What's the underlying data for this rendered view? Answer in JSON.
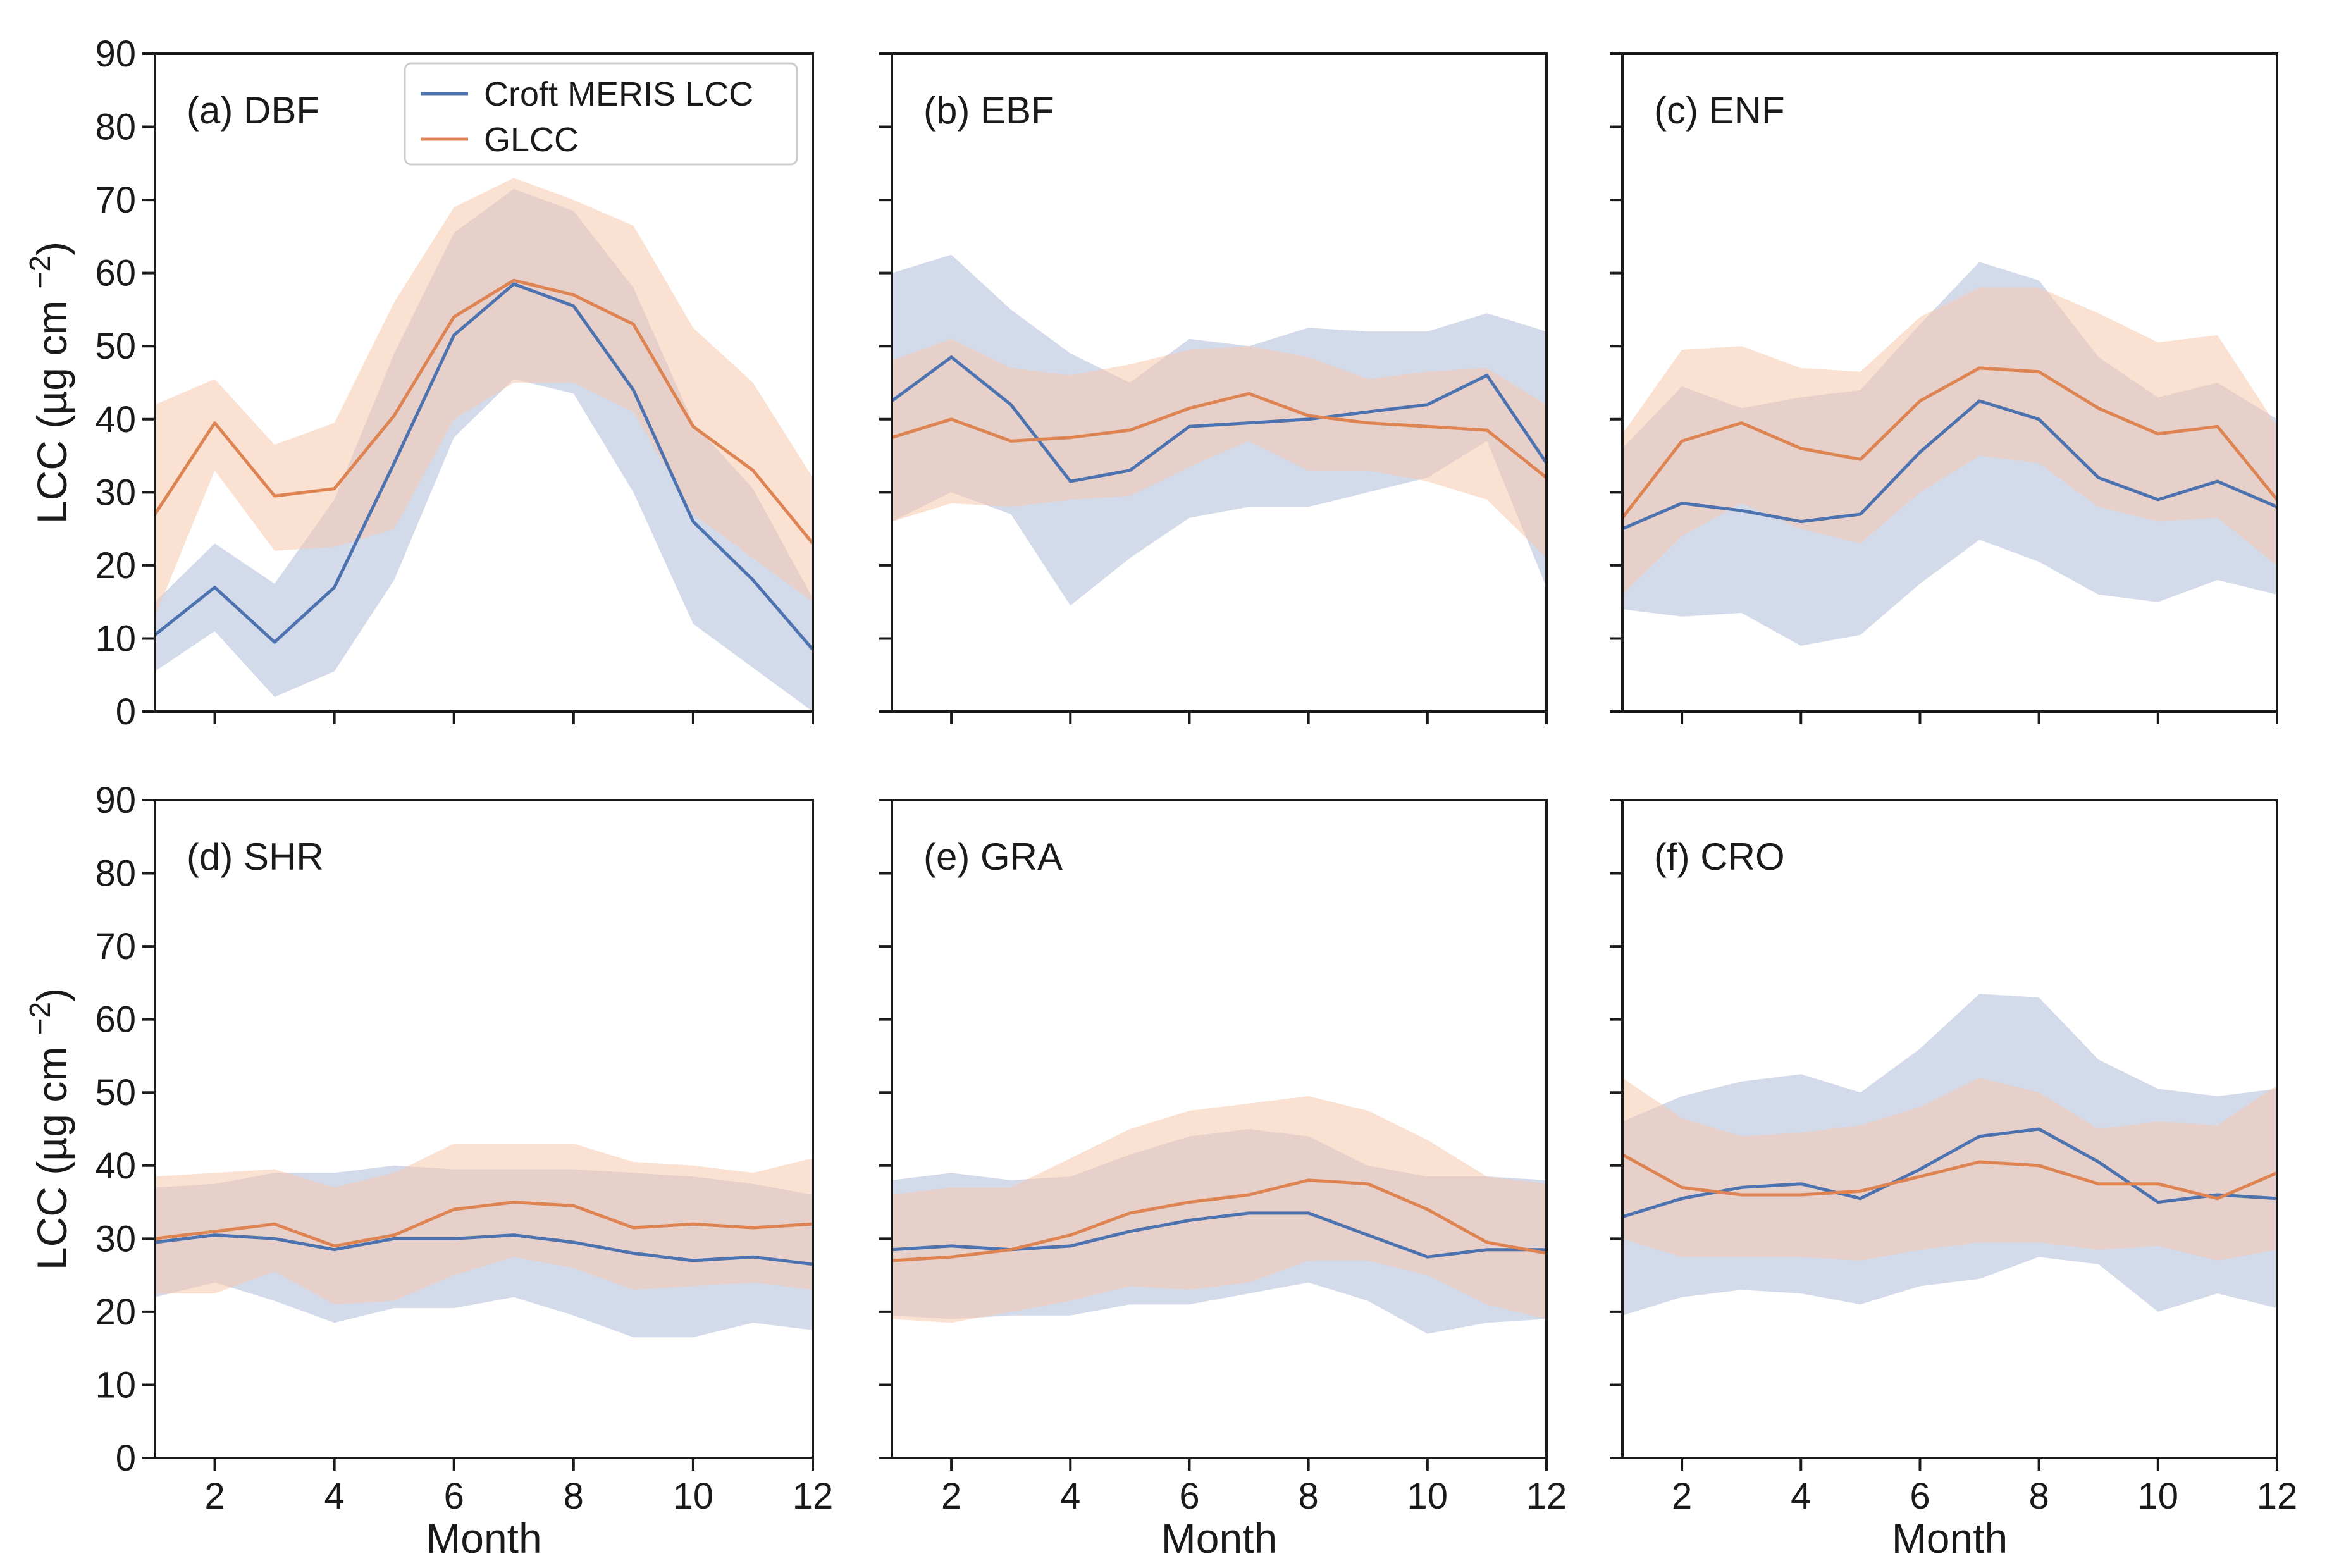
{
  "figure": {
    "series_names": [
      "Croft MERIS LCC",
      "GLCC"
    ],
    "colors": {
      "croft_line": "#4c72b0",
      "croft_band": "#aebbd8",
      "glcc_line": "#dd8452",
      "glcc_band": "#f5c9ad",
      "frame": "#1a1a1a"
    },
    "xlabel": "Month",
    "ylabel": "LCC (µg cm",
    "ylabel_exp": "−2",
    "ylabel_close": ")"
  },
  "chart_data": [
    {
      "type": "line",
      "title": "(a) DBF",
      "x": [
        1,
        2,
        3,
        4,
        5,
        6,
        7,
        8,
        9,
        10,
        11,
        12
      ],
      "xlim": [
        1,
        12
      ],
      "ylim": [
        0,
        90
      ],
      "xticks": [
        2,
        4,
        6,
        8,
        10,
        12
      ],
      "yticks": [
        0,
        10,
        20,
        30,
        40,
        50,
        60,
        70,
        80,
        90
      ],
      "show_legend": true,
      "legend_position": "top-right",
      "series": [
        {
          "name": "Croft MERIS LCC",
          "values": [
            10.5,
            17,
            9.5,
            17,
            34,
            51.5,
            58.5,
            55.5,
            44,
            26,
            18,
            8.5
          ],
          "lower": [
            5.5,
            11,
            2,
            5.5,
            18,
            37.5,
            45.5,
            43.5,
            30,
            12,
            6,
            0
          ],
          "upper": [
            15,
            23,
            17.5,
            29,
            49,
            65.5,
            71.5,
            68.5,
            58,
            39.5,
            30.5,
            15.5
          ]
        },
        {
          "name": "GLCC",
          "values": [
            27,
            39.5,
            29.5,
            30.5,
            40.5,
            54,
            59,
            57,
            53,
            39,
            33,
            23
          ],
          "lower": [
            13,
            33,
            22,
            22.5,
            25,
            40,
            45,
            45,
            41,
            27,
            21,
            15
          ],
          "upper": [
            42,
            45.5,
            36.5,
            39.5,
            56,
            69,
            73,
            70,
            66.5,
            52.5,
            45,
            32
          ]
        }
      ]
    },
    {
      "type": "line",
      "title": "(b) EBF",
      "x": [
        1,
        2,
        3,
        4,
        5,
        6,
        7,
        8,
        9,
        10,
        11,
        12
      ],
      "xlim": [
        1,
        12
      ],
      "ylim": [
        0,
        90
      ],
      "xticks": [
        2,
        4,
        6,
        8,
        10,
        12
      ],
      "yticks": [
        0,
        10,
        20,
        30,
        40,
        50,
        60,
        70,
        80,
        90
      ],
      "show_legend": false,
      "series": [
        {
          "name": "Croft MERIS LCC",
          "values": [
            42.5,
            48.5,
            42,
            31.5,
            33,
            39,
            39.5,
            40,
            41,
            42,
            46,
            34
          ],
          "lower": [
            26,
            30,
            27,
            14.5,
            21,
            26.5,
            28,
            28,
            30,
            32,
            37,
            17
          ],
          "upper": [
            60,
            62.5,
            55,
            49,
            45,
            51,
            50,
            52.5,
            52,
            52,
            54.5,
            52
          ]
        },
        {
          "name": "GLCC",
          "values": [
            37.5,
            40,
            37,
            37.5,
            38.5,
            41.5,
            43.5,
            40.5,
            39.5,
            39,
            38.5,
            32
          ]
        },
        {
          "name": "GLCC band",
          "lower": [
            26,
            28.5,
            28,
            29,
            29.5,
            33.5,
            37,
            33,
            33,
            31.5,
            29,
            21
          ],
          "upper": [
            48,
            51,
            47,
            46,
            47.5,
            49.5,
            50,
            48.5,
            45.5,
            46.5,
            47,
            42
          ]
        }
      ]
    },
    {
      "type": "line",
      "title": "(c) ENF",
      "x": [
        1,
        2,
        3,
        4,
        5,
        6,
        7,
        8,
        9,
        10,
        11,
        12
      ],
      "xlim": [
        1,
        12
      ],
      "ylim": [
        0,
        90
      ],
      "xticks": [
        2,
        4,
        6,
        8,
        10,
        12
      ],
      "yticks": [
        0,
        10,
        20,
        30,
        40,
        50,
        60,
        70,
        80,
        90
      ],
      "show_legend": false,
      "series": [
        {
          "name": "Croft MERIS LCC",
          "values": [
            25,
            28.5,
            27.5,
            26,
            27,
            35.5,
            42.5,
            40,
            32,
            29,
            31.5,
            28
          ],
          "lower": [
            14,
            13,
            13.5,
            9,
            10.5,
            17.5,
            23.5,
            20.5,
            16,
            15,
            18,
            16
          ],
          "upper": [
            36,
            44.5,
            41.5,
            43,
            44,
            53,
            61.5,
            59,
            48.5,
            43,
            45,
            40
          ]
        },
        {
          "name": "GLCC",
          "values": [
            26.5,
            37,
            39.5,
            36,
            34.5,
            42.5,
            47,
            46.5,
            41.5,
            38,
            39,
            29
          ],
          "lower": [
            16,
            24,
            28.5,
            25,
            23,
            30,
            35,
            34,
            28,
            26,
            26.5,
            20
          ],
          "upper": [
            38,
            49.5,
            50,
            47,
            46.5,
            54,
            58,
            58,
            54.5,
            50.5,
            51.5,
            39
          ]
        }
      ]
    },
    {
      "type": "line",
      "title": "(d) SHR",
      "x": [
        1,
        2,
        3,
        4,
        5,
        6,
        7,
        8,
        9,
        10,
        11,
        12
      ],
      "xlim": [
        1,
        12
      ],
      "ylim": [
        0,
        90
      ],
      "xticks": [
        2,
        4,
        6,
        8,
        10,
        12
      ],
      "yticks": [
        0,
        10,
        20,
        30,
        40,
        50,
        60,
        70,
        80,
        90
      ],
      "show_legend": false,
      "series": [
        {
          "name": "Croft MERIS LCC",
          "values": [
            29.5,
            30.5,
            30,
            28.5,
            30,
            30,
            30.5,
            29.5,
            28,
            27,
            27.5,
            26.5
          ],
          "lower": [
            22,
            24,
            21.5,
            18.5,
            20.5,
            20.5,
            22,
            19.5,
            16.5,
            16.5,
            18.5,
            17.5
          ],
          "upper": [
            37,
            37.5,
            39,
            39,
            40,
            39.5,
            39.5,
            39.5,
            39,
            38.5,
            37.5,
            36
          ]
        },
        {
          "name": "GLCC",
          "values": [
            30,
            31,
            32,
            29,
            30.5,
            34,
            35,
            34.5,
            31.5,
            32,
            31.5,
            32
          ],
          "lower": [
            22.5,
            22.5,
            25.5,
            21,
            21.5,
            25,
            27.5,
            26,
            23,
            23.5,
            24,
            23
          ],
          "upper": [
            38.5,
            39,
            39.5,
            37,
            39,
            43,
            43,
            43,
            40.5,
            40,
            39,
            41
          ]
        }
      ]
    },
    {
      "type": "line",
      "title": "(e) GRA",
      "x": [
        1,
        2,
        3,
        4,
        5,
        6,
        7,
        8,
        9,
        10,
        11,
        12
      ],
      "xlim": [
        1,
        12
      ],
      "ylim": [
        0,
        90
      ],
      "xticks": [
        2,
        4,
        6,
        8,
        10,
        12
      ],
      "yticks": [
        0,
        10,
        20,
        30,
        40,
        50,
        60,
        70,
        80,
        90
      ],
      "show_legend": false,
      "series": [
        {
          "name": "Croft MERIS LCC",
          "values": [
            28.5,
            29,
            28.5,
            29,
            31,
            32.5,
            33.5,
            33.5,
            30.5,
            27.5,
            28.5,
            28.5
          ],
          "lower": [
            19.5,
            19,
            19.5,
            19.5,
            21,
            21,
            22.5,
            24,
            21.5,
            17,
            18.5,
            19
          ],
          "upper": [
            38,
            39,
            38,
            38.5,
            41.5,
            44,
            45,
            44,
            40,
            38.5,
            38.5,
            38
          ]
        },
        {
          "name": "GLCC",
          "values": [
            27,
            27.5,
            28.5,
            30.5,
            33.5,
            35,
            36,
            38,
            37.5,
            34,
            29.5,
            28
          ],
          "lower": [
            19,
            18.5,
            20,
            21.5,
            23.5,
            23,
            24,
            27,
            27,
            25,
            21,
            19
          ],
          "upper": [
            36,
            37,
            37,
            41,
            45,
            47.5,
            48.5,
            49.5,
            47.5,
            43.5,
            38.5,
            37.5
          ]
        }
      ]
    },
    {
      "type": "line",
      "title": "(f) CRO",
      "x": [
        1,
        2,
        3,
        4,
        5,
        6,
        7,
        8,
        9,
        10,
        11,
        12
      ],
      "xlim": [
        1,
        12
      ],
      "ylim": [
        0,
        90
      ],
      "xticks": [
        2,
        4,
        6,
        8,
        10,
        12
      ],
      "yticks": [
        0,
        10,
        20,
        30,
        40,
        50,
        60,
        70,
        80,
        90
      ],
      "show_legend": false,
      "series": [
        {
          "name": "Croft MERIS LCC",
          "values": [
            33,
            35.5,
            37,
            37.5,
            35.5,
            39.5,
            44,
            45,
            40.5,
            35,
            36,
            35.5
          ],
          "lower": [
            19.5,
            22,
            23,
            22.5,
            21,
            23.5,
            24.5,
            27.5,
            26.5,
            20,
            22.5,
            20.5
          ],
          "upper": [
            46,
            49.5,
            51.5,
            52.5,
            50,
            56,
            63.5,
            63,
            54.5,
            50.5,
            49.5,
            50.5
          ]
        },
        {
          "name": "GLCC",
          "values": [
            41.5,
            37,
            36,
            36,
            36.5,
            38.5,
            40.5,
            40,
            37.5,
            37.5,
            35.5,
            39
          ],
          "lower": [
            30,
            27.5,
            27.5,
            27.5,
            27,
            28.5,
            29.5,
            29.5,
            28.5,
            29,
            27,
            28.5
          ],
          "upper": [
            52,
            46.5,
            44,
            44.5,
            45.5,
            48,
            52,
            50,
            45,
            46,
            45.5,
            51
          ]
        }
      ]
    }
  ]
}
